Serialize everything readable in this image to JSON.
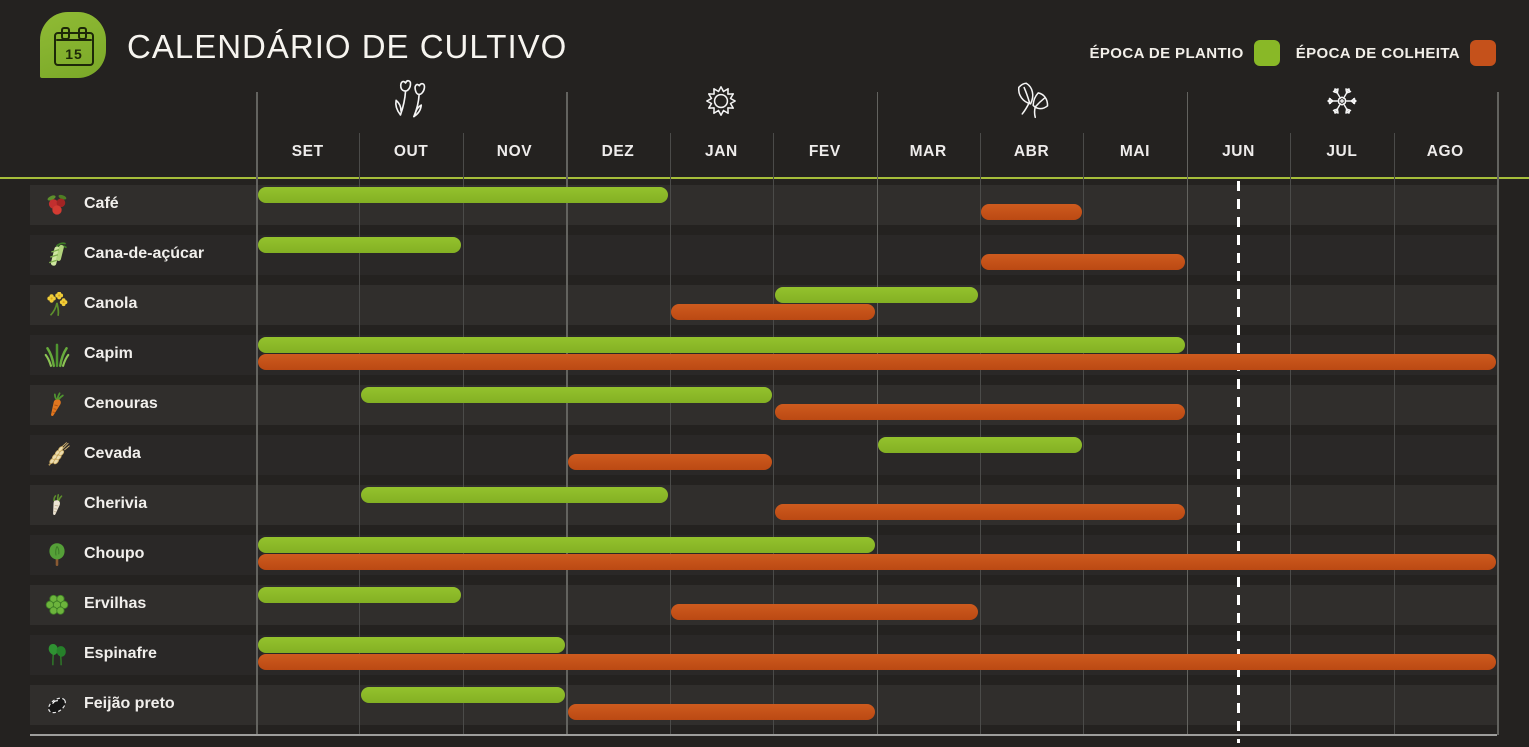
{
  "header": {
    "title": "CALENDÁRIO DE CULTIVO",
    "calendar_icon_day": "15"
  },
  "legend": {
    "items": [
      {
        "key": "plantio",
        "label": "ÉPOCA DE PLANTIO",
        "color": "#89b827"
      },
      {
        "key": "colheita",
        "label": "ÉPOCA DE COLHEITA",
        "color": "#c5511b"
      }
    ]
  },
  "chart_data": {
    "type": "gantt",
    "months": [
      "SET",
      "OUT",
      "NOV",
      "DEZ",
      "JAN",
      "FEV",
      "MAR",
      "ABR",
      "MAI",
      "JUN",
      "JUL",
      "AGO"
    ],
    "seasons": [
      {
        "name": "primavera",
        "icon": "spring-flowers-icon",
        "center_month": "OUT"
      },
      {
        "name": "verao",
        "icon": "sun-icon",
        "center_month": "JAN"
      },
      {
        "name": "outono",
        "icon": "autumn-leaves-icon",
        "center_month": "ABR"
      },
      {
        "name": "inverno",
        "icon": "snowflake-icon",
        "center_month": "JUL"
      }
    ],
    "rows": [
      {
        "name": "Café",
        "icon": "coffee-berries-icon",
        "plantio": [
          "SET",
          "DEZ"
        ],
        "colheita": [
          "ABR",
          "ABR"
        ]
      },
      {
        "name": "Cana-de-açúcar",
        "icon": "sugarcane-icon",
        "plantio": [
          "SET",
          "OUT"
        ],
        "colheita": [
          "ABR",
          "MAI"
        ]
      },
      {
        "name": "Canola",
        "icon": "canola-flower-icon",
        "plantio": [
          "FEV",
          "MAR"
        ],
        "colheita": [
          "JAN",
          "FEV"
        ]
      },
      {
        "name": "Capim",
        "icon": "grass-icon",
        "plantio": [
          "SET",
          "MAI"
        ],
        "colheita": [
          "SET",
          "AGO"
        ]
      },
      {
        "name": "Cenouras",
        "icon": "carrot-icon",
        "plantio": [
          "OUT",
          "JAN"
        ],
        "colheita": [
          "FEV",
          "MAI"
        ]
      },
      {
        "name": "Cevada",
        "icon": "barley-icon",
        "plantio": [
          "MAR",
          "ABR"
        ],
        "colheita": [
          "DEZ",
          "JAN"
        ]
      },
      {
        "name": "Cherivia",
        "icon": "parsnip-icon",
        "plantio": [
          "OUT",
          "DEZ"
        ],
        "colheita": [
          "FEV",
          "MAI"
        ]
      },
      {
        "name": "Choupo",
        "icon": "tree-icon",
        "plantio": [
          "SET",
          "FEV"
        ],
        "colheita": [
          "SET",
          "AGO"
        ]
      },
      {
        "name": "Ervilhas",
        "icon": "peas-icon",
        "plantio": [
          "SET",
          "OUT"
        ],
        "colheita": [
          "JAN",
          "MAR"
        ]
      },
      {
        "name": "Espinafre",
        "icon": "spinach-icon",
        "plantio": [
          "SET",
          "NOV"
        ],
        "colheita": [
          "SET",
          "AGO"
        ]
      },
      {
        "name": "Feijão preto",
        "icon": "black-bean-icon",
        "plantio": [
          "OUT",
          "NOV"
        ],
        "colheita": [
          "DEZ",
          "FEV"
        ]
      }
    ],
    "today_marker": {
      "month": "JUN",
      "position": "middle",
      "style": "dashed-white"
    },
    "colors": {
      "plantio": "#89b827",
      "colheita": "#c5511b",
      "separator_line": "#a6be3a"
    },
    "legend_position": "top-right",
    "grid": true
  }
}
